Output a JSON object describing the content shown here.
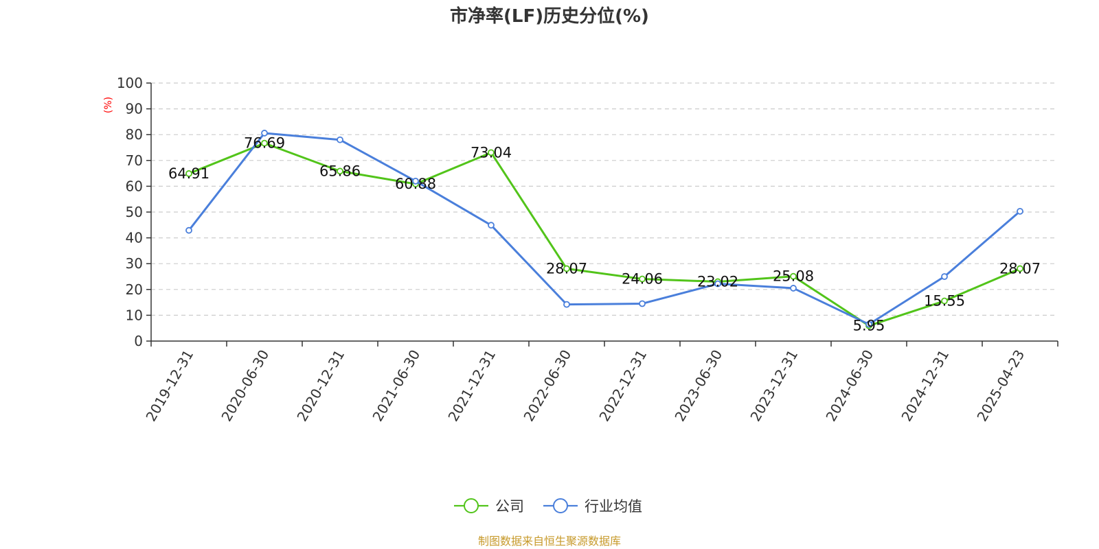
{
  "chart_data": {
    "type": "line",
    "title": "市净率(LF)历史分位(%)",
    "ylabel": "(%)",
    "xlabel": "",
    "ylim": [
      0,
      100
    ],
    "yticks": [
      0,
      10,
      20,
      30,
      40,
      50,
      60,
      70,
      80,
      90,
      100
    ],
    "grid": true,
    "legend_position": "bottom",
    "categories": [
      "2019-12-31",
      "2020-06-30",
      "2020-12-31",
      "2021-06-30",
      "2021-12-31",
      "2022-06-30",
      "2022-12-31",
      "2023-06-30",
      "2023-12-31",
      "2024-06-30",
      "2024-12-31",
      "2025-04-23"
    ],
    "series": [
      {
        "name": "公司",
        "color": "#52c41a",
        "values": [
          64.91,
          76.69,
          65.86,
          60.88,
          73.04,
          28.07,
          24.06,
          23.02,
          25.08,
          5.95,
          15.55,
          28.07
        ],
        "labels": [
          "64.91",
          "76.69",
          "65.86",
          "60.88",
          "73.04",
          "28.07",
          "24.06",
          "23.02",
          "25.08",
          "5.95",
          "15.55",
          "28.07"
        ]
      },
      {
        "name": "行业均值",
        "color": "#4a7fdb",
        "values": [
          42.9,
          80.6,
          78.0,
          62.0,
          44.9,
          14.2,
          14.5,
          22.2,
          20.5,
          6.5,
          25.0,
          50.3
        ]
      }
    ],
    "source": "制图数据来自恒生聚源数据库"
  }
}
